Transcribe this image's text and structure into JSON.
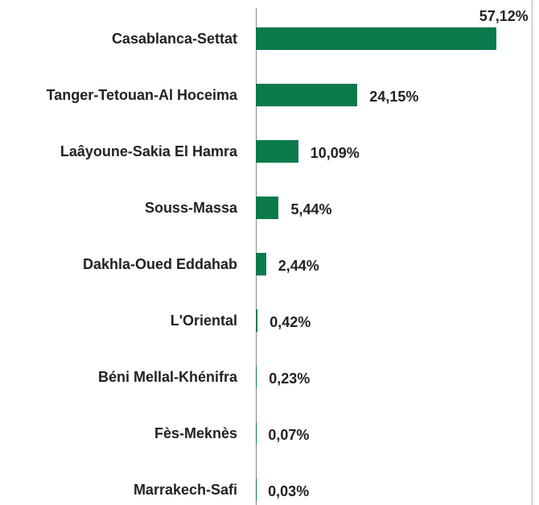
{
  "chart_data": {
    "type": "bar",
    "orientation": "horizontal",
    "color": "#0b7a4b",
    "categories": [
      "Casablanca-Settat",
      "Tanger-Tetouan-Al Hoceima",
      "Laâyoune-Sakia El Hamra",
      "Souss-Massa",
      "Dakhla-Oued Eddahab",
      "L'Oriental",
      "Béni Mellal-Khénifra",
      "Fès-Meknès",
      "Marrakech-Safi"
    ],
    "values": [
      57.12,
      24.15,
      10.09,
      5.44,
      2.44,
      0.42,
      0.23,
      0.07,
      0.03
    ],
    "value_labels": [
      "57,12%",
      "24,15%",
      "10,09%",
      "5,44%",
      "2,44%",
      "0,42%",
      "0,23%",
      "0,07%",
      "0,03%"
    ]
  }
}
